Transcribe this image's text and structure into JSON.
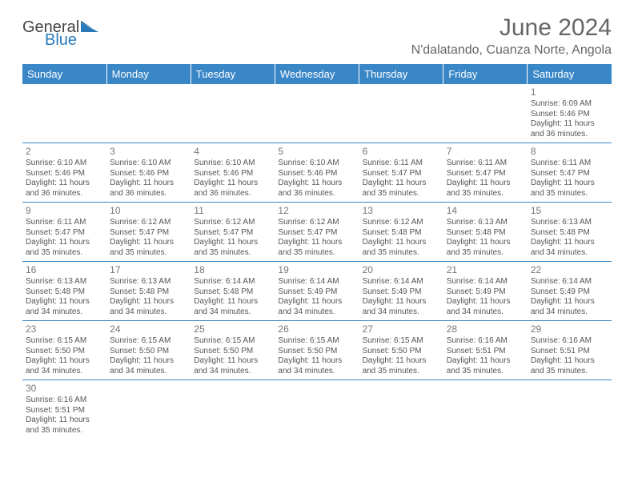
{
  "brand": {
    "general": "General",
    "blue": "Blue"
  },
  "title": "June 2024",
  "location": "N'dalatando, Cuanza Norte, Angola",
  "colors": {
    "header_bg": "#3a87c8",
    "header_text": "#ffffff",
    "border": "#3a87c8",
    "text": "#555555",
    "title": "#666666"
  },
  "dayNames": [
    "Sunday",
    "Monday",
    "Tuesday",
    "Wednesday",
    "Thursday",
    "Friday",
    "Saturday"
  ],
  "weeks": [
    [
      null,
      null,
      null,
      null,
      null,
      null,
      {
        "d": "1",
        "sunrise": "6:09 AM",
        "sunset": "5:46 PM",
        "daylight": "11 hours and 36 minutes."
      }
    ],
    [
      {
        "d": "2",
        "sunrise": "6:10 AM",
        "sunset": "5:46 PM",
        "daylight": "11 hours and 36 minutes."
      },
      {
        "d": "3",
        "sunrise": "6:10 AM",
        "sunset": "5:46 PM",
        "daylight": "11 hours and 36 minutes."
      },
      {
        "d": "4",
        "sunrise": "6:10 AM",
        "sunset": "5:46 PM",
        "daylight": "11 hours and 36 minutes."
      },
      {
        "d": "5",
        "sunrise": "6:10 AM",
        "sunset": "5:46 PM",
        "daylight": "11 hours and 36 minutes."
      },
      {
        "d": "6",
        "sunrise": "6:11 AM",
        "sunset": "5:47 PM",
        "daylight": "11 hours and 35 minutes."
      },
      {
        "d": "7",
        "sunrise": "6:11 AM",
        "sunset": "5:47 PM",
        "daylight": "11 hours and 35 minutes."
      },
      {
        "d": "8",
        "sunrise": "6:11 AM",
        "sunset": "5:47 PM",
        "daylight": "11 hours and 35 minutes."
      }
    ],
    [
      {
        "d": "9",
        "sunrise": "6:11 AM",
        "sunset": "5:47 PM",
        "daylight": "11 hours and 35 minutes."
      },
      {
        "d": "10",
        "sunrise": "6:12 AM",
        "sunset": "5:47 PM",
        "daylight": "11 hours and 35 minutes."
      },
      {
        "d": "11",
        "sunrise": "6:12 AM",
        "sunset": "5:47 PM",
        "daylight": "11 hours and 35 minutes."
      },
      {
        "d": "12",
        "sunrise": "6:12 AM",
        "sunset": "5:47 PM",
        "daylight": "11 hours and 35 minutes."
      },
      {
        "d": "13",
        "sunrise": "6:12 AM",
        "sunset": "5:48 PM",
        "daylight": "11 hours and 35 minutes."
      },
      {
        "d": "14",
        "sunrise": "6:13 AM",
        "sunset": "5:48 PM",
        "daylight": "11 hours and 35 minutes."
      },
      {
        "d": "15",
        "sunrise": "6:13 AM",
        "sunset": "5:48 PM",
        "daylight": "11 hours and 34 minutes."
      }
    ],
    [
      {
        "d": "16",
        "sunrise": "6:13 AM",
        "sunset": "5:48 PM",
        "daylight": "11 hours and 34 minutes."
      },
      {
        "d": "17",
        "sunrise": "6:13 AM",
        "sunset": "5:48 PM",
        "daylight": "11 hours and 34 minutes."
      },
      {
        "d": "18",
        "sunrise": "6:14 AM",
        "sunset": "5:48 PM",
        "daylight": "11 hours and 34 minutes."
      },
      {
        "d": "19",
        "sunrise": "6:14 AM",
        "sunset": "5:49 PM",
        "daylight": "11 hours and 34 minutes."
      },
      {
        "d": "20",
        "sunrise": "6:14 AM",
        "sunset": "5:49 PM",
        "daylight": "11 hours and 34 minutes."
      },
      {
        "d": "21",
        "sunrise": "6:14 AM",
        "sunset": "5:49 PM",
        "daylight": "11 hours and 34 minutes."
      },
      {
        "d": "22",
        "sunrise": "6:14 AM",
        "sunset": "5:49 PM",
        "daylight": "11 hours and 34 minutes."
      }
    ],
    [
      {
        "d": "23",
        "sunrise": "6:15 AM",
        "sunset": "5:50 PM",
        "daylight": "11 hours and 34 minutes."
      },
      {
        "d": "24",
        "sunrise": "6:15 AM",
        "sunset": "5:50 PM",
        "daylight": "11 hours and 34 minutes."
      },
      {
        "d": "25",
        "sunrise": "6:15 AM",
        "sunset": "5:50 PM",
        "daylight": "11 hours and 34 minutes."
      },
      {
        "d": "26",
        "sunrise": "6:15 AM",
        "sunset": "5:50 PM",
        "daylight": "11 hours and 34 minutes."
      },
      {
        "d": "27",
        "sunrise": "6:15 AM",
        "sunset": "5:50 PM",
        "daylight": "11 hours and 35 minutes."
      },
      {
        "d": "28",
        "sunrise": "6:16 AM",
        "sunset": "5:51 PM",
        "daylight": "11 hours and 35 minutes."
      },
      {
        "d": "29",
        "sunrise": "6:16 AM",
        "sunset": "5:51 PM",
        "daylight": "11 hours and 35 minutes."
      }
    ],
    [
      {
        "d": "30",
        "sunrise": "6:16 AM",
        "sunset": "5:51 PM",
        "daylight": "11 hours and 35 minutes."
      },
      null,
      null,
      null,
      null,
      null,
      null
    ]
  ],
  "labels": {
    "sunrise": "Sunrise:",
    "sunset": "Sunset:",
    "daylight": "Daylight:"
  }
}
